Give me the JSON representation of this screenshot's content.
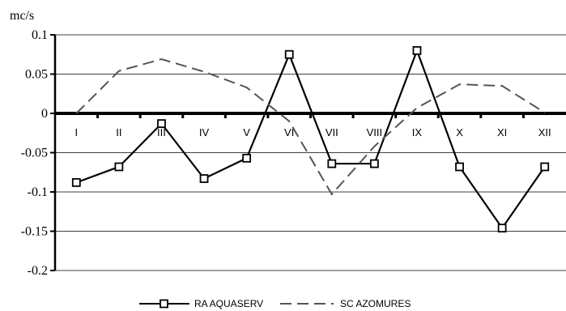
{
  "chart_data": {
    "type": "line",
    "title": "",
    "ylabel": "mc/s",
    "xlabel": "",
    "categories": [
      "I",
      "II",
      "III",
      "IV",
      "V",
      "VI",
      "VII",
      "VIII",
      "IX",
      "X",
      "XI",
      "XII"
    ],
    "ylim": [
      -0.2,
      0.1
    ],
    "yticks": [
      0.1,
      0.05,
      0,
      -0.05,
      -0.1,
      -0.15,
      -0.2
    ],
    "ytick_labels": [
      "0.1",
      "0.05",
      "0",
      "-0.05",
      "-0.1",
      "-0.15",
      "-0.2"
    ],
    "grid": true,
    "legend_position": "bottom",
    "series": [
      {
        "name": "RA AQUASERV",
        "style": "solid-square-markers",
        "color": "#000000",
        "values": [
          -0.088,
          -0.068,
          -0.013,
          -0.083,
          -0.057,
          0.075,
          -0.064,
          -0.064,
          0.08,
          -0.068,
          -0.146,
          -0.068
        ]
      },
      {
        "name": "SC AZOMURES",
        "style": "dashed",
        "color": "#555555",
        "values": [
          0.0,
          0.054,
          0.069,
          0.053,
          0.033,
          -0.01,
          -0.103,
          -0.042,
          0.007,
          0.037,
          0.035,
          0.001
        ]
      }
    ]
  }
}
